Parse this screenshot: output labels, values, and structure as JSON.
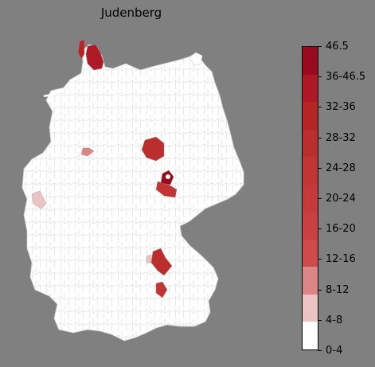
{
  "title": "Judenberg",
  "colors": {
    "background": "#808080",
    "land": "#ffffff",
    "borders": "#d0d0d0"
  },
  "legend": {
    "bins": [
      {
        "label": "0-4",
        "color": "#ffffff"
      },
      {
        "label": "4-8",
        "color": "#ecc3c3"
      },
      {
        "label": "8-12",
        "color": "#dc8585"
      },
      {
        "label": "12-16",
        "color": "#cd4b4b"
      },
      {
        "label": "16-20",
        "color": "#c94040"
      },
      {
        "label": "20-24",
        "color": "#c53a3a"
      },
      {
        "label": "24-28",
        "color": "#c13535"
      },
      {
        "label": "28-32",
        "color": "#bb2e2e"
      },
      {
        "label": "32-36",
        "color": "#b62525"
      },
      {
        "label": "36-46.5",
        "color": "#ad1a26"
      },
      {
        "label": "46.5",
        "color": "#9a0a1e"
      }
    ]
  },
  "highlighted_regions": [
    {
      "name": "north-schleswig",
      "bin": 9
    },
    {
      "name": "sylt-islands",
      "bin": 8
    },
    {
      "name": "central-east-region",
      "bin": 7
    },
    {
      "name": "west-region",
      "bin": 2
    },
    {
      "name": "southwest-region",
      "bin": 1
    },
    {
      "name": "leipzig-area",
      "bin": 10
    },
    {
      "name": "halle-area",
      "bin": 6
    },
    {
      "name": "regensburg-area",
      "bin": 7
    },
    {
      "name": "ingolstadt-area",
      "bin": 6
    },
    {
      "name": "nuremberg-area",
      "bin": 1
    }
  ]
}
